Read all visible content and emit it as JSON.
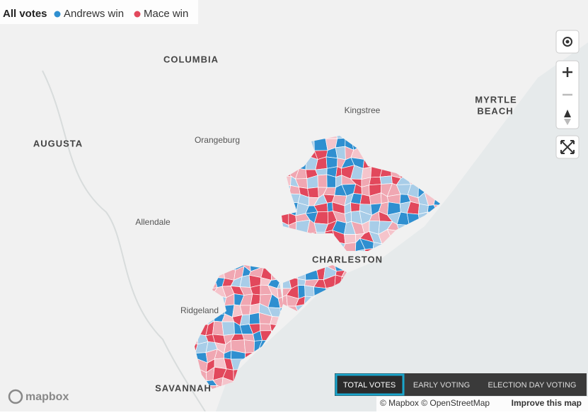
{
  "legend": {
    "title": "All votes",
    "items": [
      {
        "label": "Andrews win",
        "color": "#2f8fd0"
      },
      {
        "label": "Mace win",
        "color": "#e2485c"
      }
    ]
  },
  "places": [
    {
      "name": "COLUMBIA"
    },
    {
      "name": "AUGUSTA"
    },
    {
      "name": "Orangeburg"
    },
    {
      "name": "Kingstree"
    },
    {
      "name": "MYRTLE"
    },
    {
      "name": "BEACH"
    },
    {
      "name": "Allendale"
    },
    {
      "name": "CHARLESTON"
    },
    {
      "name": "Ridgeland"
    },
    {
      "name": "SAVANNAH"
    }
  ],
  "tabs": [
    {
      "label": "TOTAL VOTES",
      "active": true
    },
    {
      "label": "EARLY VOTING",
      "active": false
    },
    {
      "label": "ELECTION DAY VOTING",
      "active": false
    }
  ],
  "logo": "mapbox",
  "attribution": "© Mapbox © OpenStreetMap",
  "improve": "Improve this map"
}
